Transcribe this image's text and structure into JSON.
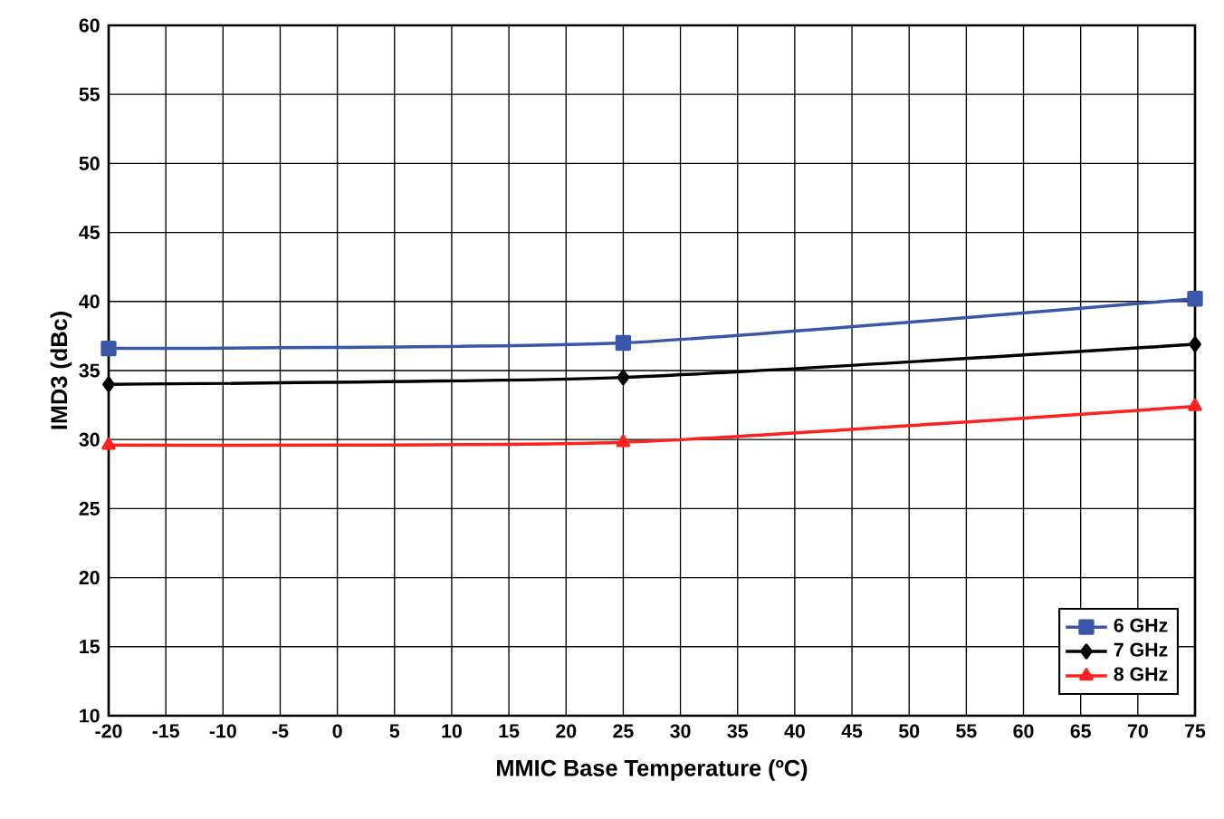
{
  "chart_data": {
    "type": "line",
    "xlabel": "MMIC Base Temperature (ºC)",
    "ylabel": "IMD3 (dBc)",
    "x": [
      -20,
      25,
      75
    ],
    "series": [
      {
        "name": "6 GHz",
        "color": "#3a56a8",
        "values": [
          36.6,
          37.0,
          40.2
        ],
        "marker": "square"
      },
      {
        "name": "7 GHz",
        "color": "#000000",
        "values": [
          34.0,
          34.5,
          36.9
        ],
        "marker": "diamond"
      },
      {
        "name": "8 GHz",
        "color": "#ff2020",
        "values": [
          29.6,
          29.8,
          32.4
        ],
        "marker": "triangle"
      }
    ],
    "xlim": [
      -20,
      75
    ],
    "xticks": [
      -20,
      -15,
      -10,
      -5,
      0,
      5,
      10,
      15,
      20,
      25,
      30,
      35,
      40,
      45,
      50,
      55,
      60,
      65,
      70,
      75
    ],
    "ylim": [
      10,
      60
    ],
    "yticks": [
      10,
      15,
      20,
      25,
      30,
      35,
      40,
      45,
      50,
      55,
      60
    ],
    "grid": true,
    "legend": "bottom right",
    "line_style": "solid"
  }
}
